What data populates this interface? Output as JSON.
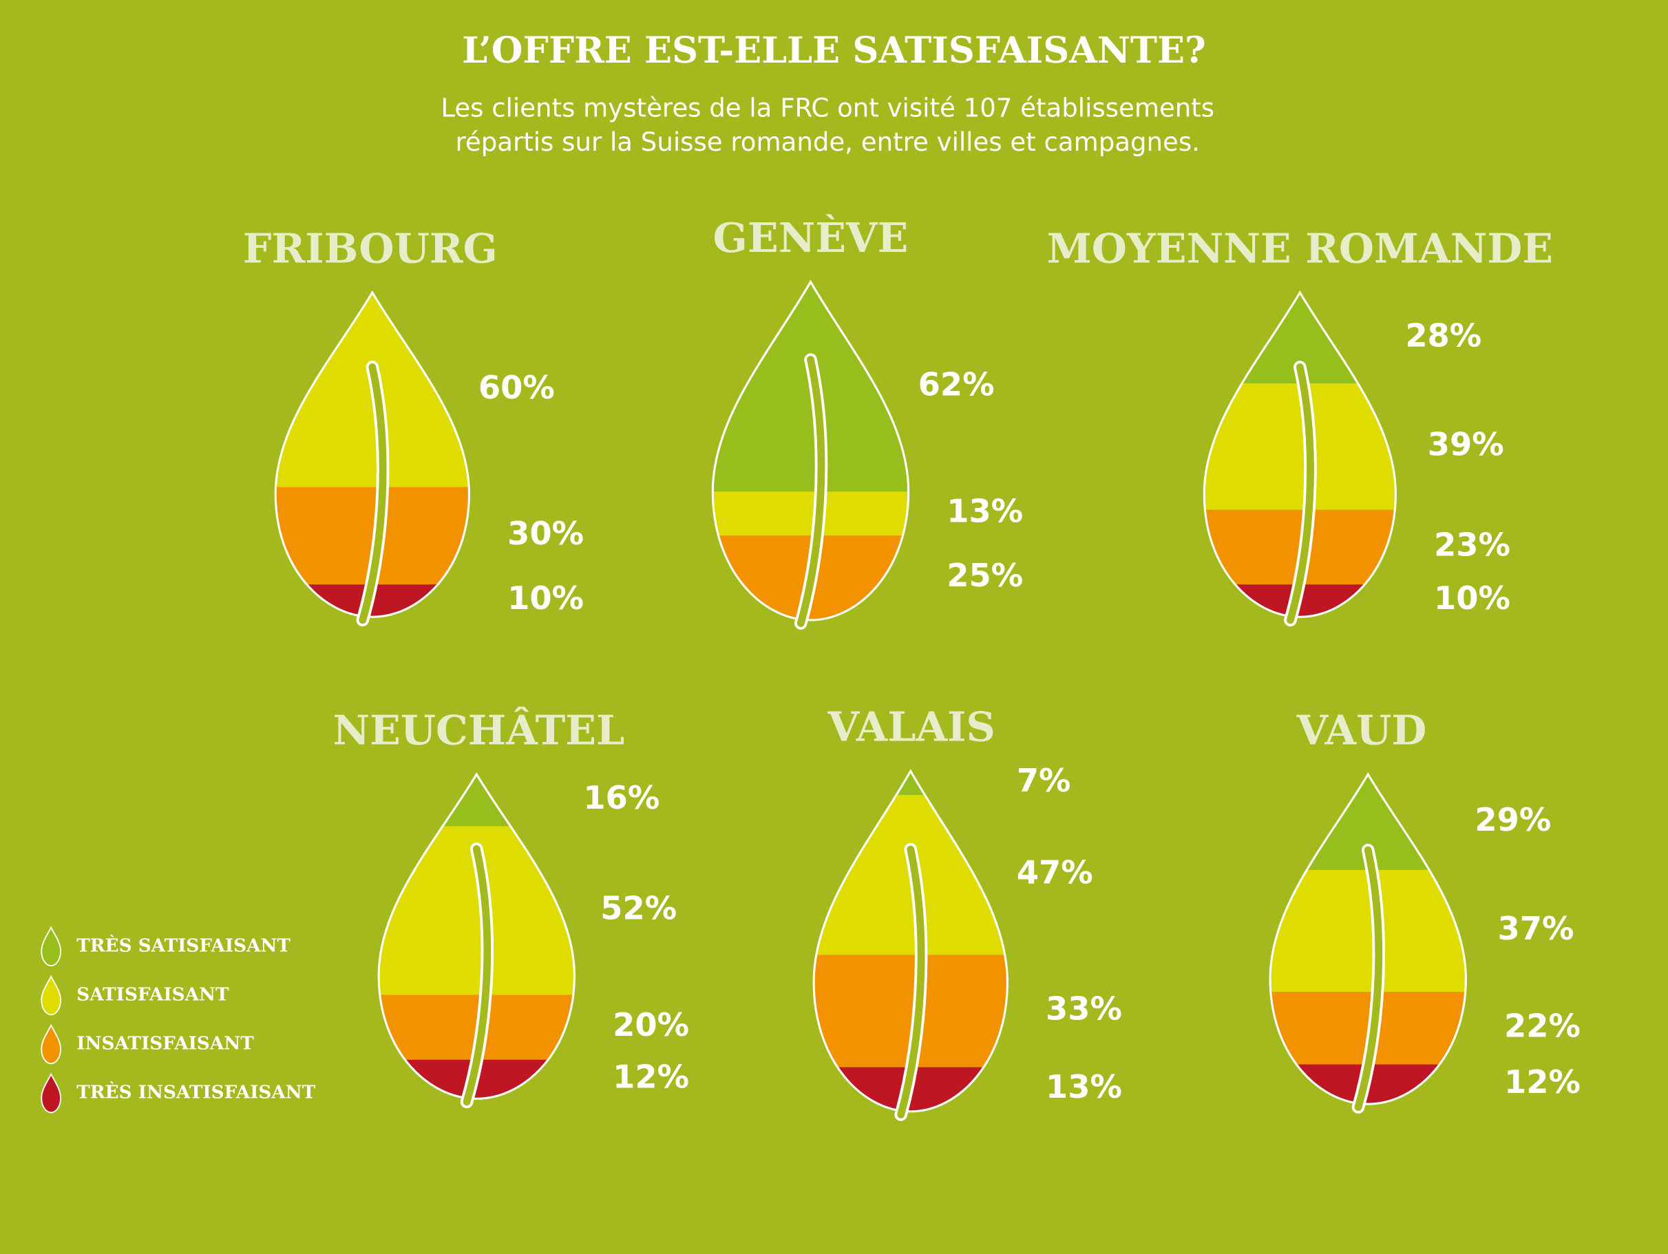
{
  "title": "L’OFFRE EST-ELLE SATISFAISANTE?",
  "subtitle": [
    "Les clients mystères de la FRC ont visité 107 établissements",
    "répartis sur la Suisse romande, entre villes et campagnes."
  ],
  "legend": {
    "categories": [
      "TRÈS SATISFAISANT",
      "SATISFAISANT",
      "INSATISFAISANT",
      "TRÈS INSATISFAISANT"
    ],
    "colors": [
      "#96bf1e",
      "#dedc00",
      "#f39200",
      "#be1622"
    ]
  },
  "chart_data": [
    {
      "type": "leaf",
      "title": "FRIBOURG",
      "values": [
        null,
        60,
        30,
        10
      ],
      "value_labels": [
        null,
        "60%",
        "30%",
        "10%"
      ]
    },
    {
      "type": "leaf",
      "title": "GENÈVE",
      "values": [
        62,
        13,
        25,
        null
      ],
      "value_labels": [
        "62%",
        "13%",
        "25%",
        null
      ]
    },
    {
      "type": "leaf",
      "title": "MOYENNE ROMANDE",
      "values": [
        28,
        39,
        23,
        10
      ],
      "value_labels": [
        "28%",
        "39%",
        "23%",
        "10%"
      ]
    },
    {
      "type": "leaf",
      "title": "NEUCHÂTEL",
      "values": [
        16,
        52,
        20,
        12
      ],
      "value_labels": [
        "16%",
        "52%",
        "20%",
        "12%"
      ]
    },
    {
      "type": "leaf",
      "title": "VALAIS",
      "values": [
        7,
        47,
        33,
        13
      ],
      "value_labels": [
        "7%",
        "47%",
        "33%",
        "13%"
      ]
    },
    {
      "type": "leaf",
      "title": "VAUD",
      "values": [
        29,
        37,
        22,
        12
      ],
      "value_labels": [
        "29%",
        "37%",
        "22%",
        "12%"
      ]
    }
  ]
}
